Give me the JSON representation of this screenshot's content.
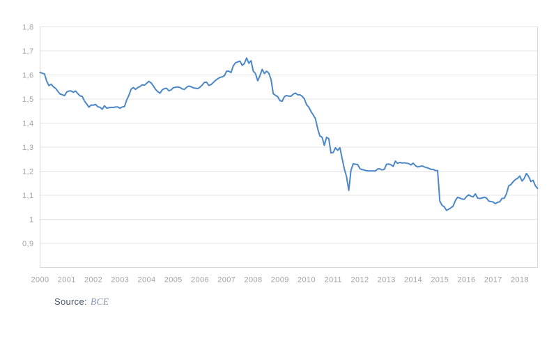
{
  "chart_data": {
    "type": "line",
    "title": "",
    "legend": false,
    "grid": true,
    "line_color": "#4a86c8",
    "x": {
      "frequency": "monthly",
      "start_year": 2000,
      "start_month": 1,
      "tick_labels": [
        "2000",
        "2001",
        "2002",
        "2003",
        "2004",
        "2005",
        "2006",
        "2007",
        "2008",
        "2009",
        "2010",
        "2011",
        "2012",
        "2013",
        "2014",
        "2015",
        "2016",
        "2017",
        "2018"
      ]
    },
    "y": {
      "min": 0.8,
      "max": 1.8,
      "tick_values": [
        1.8,
        1.7,
        1.6,
        1.5,
        1.4,
        1.3,
        1.2,
        1.1,
        1.0,
        0.9
      ],
      "tick_labels": [
        "1,8",
        "1,7",
        "1,6",
        "1,5",
        "1,4",
        "1,3",
        "1,2",
        "1,1",
        "1",
        "0,9"
      ]
    },
    "values": [
      1.6103,
      1.6075,
      1.6042,
      1.5739,
      1.5557,
      1.5617,
      1.551,
      1.544,
      1.532,
      1.521,
      1.518,
      1.514,
      1.5291,
      1.5334,
      1.5337,
      1.5278,
      1.5334,
      1.5225,
      1.513,
      1.511,
      1.4913,
      1.4793,
      1.4663,
      1.4749,
      1.4745,
      1.4775,
      1.4678,
      1.4658,
      1.4572,
      1.4721,
      1.4622,
      1.464,
      1.4649,
      1.465,
      1.4671,
      1.4671,
      1.4616,
      1.4672,
      1.4684,
      1.4958,
      1.5154,
      1.5411,
      1.5476,
      1.54,
      1.5474,
      1.5524,
      1.559,
      1.5577,
      1.5657,
      1.5734,
      1.567,
      1.5547,
      1.54,
      1.5305,
      1.524,
      1.538,
      1.5431,
      1.5445,
      1.534,
      1.538,
      1.5469,
      1.549,
      1.5501,
      1.548,
      1.5421,
      1.5401,
      1.549,
      1.554,
      1.551,
      1.547,
      1.545,
      1.543,
      1.5494,
      1.558,
      1.5691,
      1.5698,
      1.5564,
      1.5601,
      1.5687,
      1.5775,
      1.5841,
      1.5898,
      1.5922,
      1.5969,
      1.6157,
      1.6158,
      1.6102,
      1.6378,
      1.6506,
      1.6543,
      1.6576,
      1.64,
      1.6475,
      1.6706,
      1.6485,
      1.6592,
      1.616,
      1.6055,
      1.5757,
      1.597,
      1.6231,
      1.6059,
      1.6158,
      1.6072,
      1.5817,
      1.5223,
      1.5155,
      1.5096,
      1.4936,
      1.4904,
      1.5096,
      1.5147,
      1.5118,
      1.5117,
      1.5202,
      1.5247,
      1.5176,
      1.5175,
      1.5117,
      1.5009,
      1.4765,
      1.4661,
      1.4482,
      1.4337,
      1.4181,
      1.3767,
      1.346,
      1.3413,
      1.3074,
      1.3408,
      1.3352,
      1.2758,
      1.2779,
      1.2974,
      1.2867,
      1.2977,
      1.2537,
      1.2092,
      1.1775,
      1.1203,
      1.2041,
      1.2307,
      1.2291,
      1.2279,
      1.2108,
      1.2068,
      1.2045,
      1.2021,
      1.201,
      1.201,
      1.2011,
      1.2012,
      1.2095,
      1.2098,
      1.2052,
      1.2078,
      1.2288,
      1.2298,
      1.2266,
      1.2199,
      1.2418,
      1.2322,
      1.2366,
      1.2338,
      1.235,
      1.2331,
      1.2317,
      1.2259,
      1.2335,
      1.2233,
      1.2177,
      1.2196,
      1.2219,
      1.218,
      1.215,
      1.2121,
      1.2076,
      1.2075,
      1.2026,
      1.2027,
      1.076,
      1.058,
      1.052,
      1.0373,
      1.042,
      1.048,
      1.055,
      1.0778,
      1.0914,
      1.0883,
      1.0844,
      1.083,
      1.0941,
      1.1018,
      1.0961,
      1.093,
      1.1058,
      1.0886,
      1.0867,
      1.0884,
      1.0918,
      1.0886,
      1.076,
      1.0738,
      1.0719,
      1.065,
      1.0706,
      1.0731,
      1.0871,
      1.0874,
      1.1059,
      1.1388,
      1.1446,
      1.1562,
      1.1651,
      1.1702,
      1.1798,
      1.1591,
      1.17,
      1.1906,
      1.1772,
      1.1569,
      1.1623,
      1.1399,
      1.1283
    ]
  },
  "source": {
    "label": "Source:",
    "value": "BCE"
  },
  "colors": {
    "background": "#ffffff",
    "gridline": "#e4e4e4",
    "axis_border": "#d8d8d8",
    "tick_label": "#a3a3a3",
    "source_label": "#44546a",
    "source_value": "#8496b0"
  }
}
